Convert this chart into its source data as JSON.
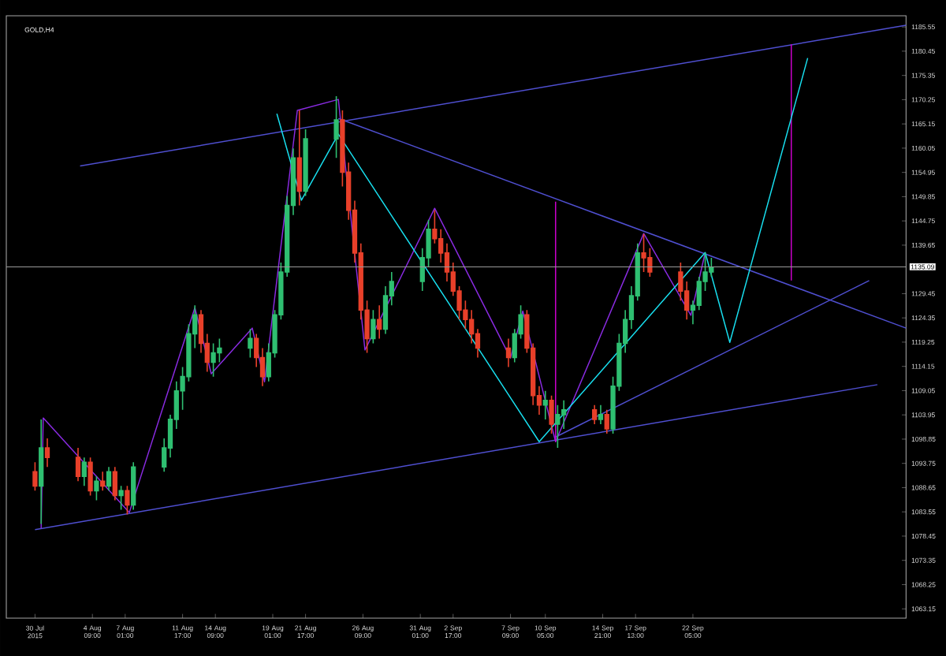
{
  "chart_data": {
    "type": "candlestick",
    "title": "GOLD,H4",
    "x": [
      "2015-07-30T17:00",
      "2015-07-31T05:00",
      "2015-07-31T17:00",
      "2015-08-03T05:00",
      "2015-08-03T17:00",
      "2015-08-04T05:00",
      "2015-08-04T17:00",
      "2015-08-05T05:00",
      "2015-08-05T17:00",
      "2015-08-06T05:00",
      "2015-08-06T17:00",
      "2015-08-07T05:00",
      "2015-08-07T17:00",
      "2015-08-10T05:00",
      "2015-08-10T17:00",
      "2015-08-11T05:00",
      "2015-08-11T17:00",
      "2015-08-12T05:00",
      "2015-08-12T17:00",
      "2015-08-13T05:00",
      "2015-08-13T17:00",
      "2015-08-14T05:00",
      "2015-08-14T17:00",
      "2015-08-17T05:00",
      "2015-08-17T17:00",
      "2015-08-18T05:00",
      "2015-08-18T17:00",
      "2015-08-19T05:00",
      "2015-08-19T17:00",
      "2015-08-20T05:00",
      "2015-08-20T17:00",
      "2015-08-21T05:00",
      "2015-08-21T17:00",
      "2015-08-24T05:00",
      "2015-08-24T17:00",
      "2015-08-25T05:00",
      "2015-08-25T17:00",
      "2015-08-26T05:00",
      "2015-08-26T17:00",
      "2015-08-27T05:00",
      "2015-08-27T17:00",
      "2015-08-28T05:00",
      "2015-08-28T17:00",
      "2015-08-31T05:00",
      "2015-08-31T17:00",
      "2015-09-01T05:00",
      "2015-09-01T17:00",
      "2015-09-02T05:00",
      "2015-09-02T17:00",
      "2015-09-03T05:00",
      "2015-09-03T17:00",
      "2015-09-04T05:00",
      "2015-09-04T17:00",
      "2015-09-07T05:00",
      "2015-09-07T17:00",
      "2015-09-08T05:00",
      "2015-09-08T17:00",
      "2015-09-09T05:00",
      "2015-09-09T17:00",
      "2015-09-10T05:00",
      "2015-09-10T17:00",
      "2015-09-11T05:00",
      "2015-09-11T17:00",
      "2015-09-14T05:00",
      "2015-09-14T17:00",
      "2015-09-15T05:00",
      "2015-09-15T17:00",
      "2015-09-16T05:00",
      "2015-09-16T17:00",
      "2015-09-17T05:00",
      "2015-09-17T17:00",
      "2015-09-18T05:00",
      "2015-09-18T17:00",
      "2015-09-21T05:00",
      "2015-09-21T17:00",
      "2015-09-22T05:00",
      "2015-09-22T17:00",
      "2015-09-23T05:00",
      "2015-09-23T17:00"
    ],
    "ohlc": [
      [
        1092,
        1094,
        1088,
        1089
      ],
      [
        1089,
        1103,
        1081,
        1097
      ],
      [
        1097,
        1099,
        1093,
        1095
      ],
      [
        1095,
        1097,
        1090,
        1091
      ],
      [
        1091,
        1095,
        1089,
        1094
      ],
      [
        1094,
        1095,
        1087,
        1088
      ],
      [
        1088,
        1091,
        1086,
        1090
      ],
      [
        1090,
        1092,
        1088,
        1089
      ],
      [
        1089,
        1093,
        1088,
        1092
      ],
      [
        1092,
        1093,
        1086,
        1087
      ],
      [
        1087,
        1089,
        1084,
        1088
      ],
      [
        1088,
        1089,
        1083,
        1085
      ],
      [
        1085,
        1094,
        1084,
        1093
      ],
      [
        1093,
        1099,
        1092,
        1097
      ],
      [
        1097,
        1104,
        1095,
        1103
      ],
      [
        1103,
        1111,
        1101,
        1109
      ],
      [
        1109,
        1114,
        1105,
        1112
      ],
      [
        1112,
        1123,
        1111,
        1121
      ],
      [
        1121,
        1127,
        1118,
        1125
      ],
      [
        1125,
        1126,
        1117,
        1119
      ],
      [
        1119,
        1121,
        1113,
        1115
      ],
      [
        1115,
        1119,
        1112,
        1117
      ],
      [
        1117,
        1120,
        1115,
        1118
      ],
      [
        1118,
        1122,
        1116,
        1120
      ],
      [
        1120,
        1121,
        1114,
        1116
      ],
      [
        1116,
        1118,
        1110,
        1112
      ],
      [
        1112,
        1119,
        1111,
        1117
      ],
      [
        1117,
        1126,
        1116,
        1125
      ],
      [
        1125,
        1136,
        1124,
        1134
      ],
      [
        1134,
        1150,
        1133,
        1148
      ],
      [
        1148,
        1160,
        1146,
        1158
      ],
      [
        1158,
        1168,
        1148,
        1151
      ],
      [
        1151,
        1164,
        1150,
        1162
      ],
      [
        1162,
        1171,
        1158,
        1166
      ],
      [
        1166,
        1168,
        1152,
        1155
      ],
      [
        1155,
        1157,
        1145,
        1147
      ],
      [
        1147,
        1149,
        1136,
        1138
      ],
      [
        1138,
        1140,
        1124,
        1126
      ],
      [
        1126,
        1128,
        1117,
        1120
      ],
      [
        1120,
        1126,
        1119,
        1124
      ],
      [
        1124,
        1127,
        1120,
        1122
      ],
      [
        1122,
        1131,
        1121,
        1129
      ],
      [
        1129,
        1134,
        1127,
        1132
      ],
      [
        1132,
        1139,
        1130,
        1137
      ],
      [
        1137,
        1145,
        1135,
        1143
      ],
      [
        1143,
        1147,
        1140,
        1141
      ],
      [
        1141,
        1143,
        1136,
        1138
      ],
      [
        1138,
        1140,
        1132,
        1134
      ],
      [
        1134,
        1136,
        1129,
        1130
      ],
      [
        1130,
        1131,
        1124,
        1126
      ],
      [
        1126,
        1128,
        1122,
        1124
      ],
      [
        1124,
        1126,
        1119,
        1121
      ],
      [
        1121,
        1122,
        1116,
        1118
      ],
      [
        1118,
        1120,
        1114,
        1116
      ],
      [
        1116,
        1122,
        1115,
        1121
      ],
      [
        1121,
        1127,
        1120,
        1125
      ],
      [
        1125,
        1126,
        1117,
        1118
      ],
      [
        1118,
        1119,
        1106,
        1108
      ],
      [
        1108,
        1110,
        1104,
        1106
      ],
      [
        1106,
        1109,
        1103,
        1107
      ],
      [
        1107,
        1108,
        1100,
        1102
      ],
      [
        1102,
        1106,
        1097,
        1104
      ],
      [
        1104,
        1107,
        1101,
        1105
      ],
      [
        1105,
        1106,
        1102,
        1103
      ],
      [
        1103,
        1106,
        1102,
        1104
      ],
      [
        1104,
        1105,
        1100,
        1101
      ],
      [
        1101,
        1112,
        1100,
        1110
      ],
      [
        1110,
        1121,
        1109,
        1119
      ],
      [
        1119,
        1126,
        1117,
        1124
      ],
      [
        1124,
        1131,
        1122,
        1129
      ],
      [
        1129,
        1140,
        1128,
        1138
      ],
      [
        1138,
        1142,
        1134,
        1137
      ],
      [
        1137,
        1139,
        1133,
        1134
      ],
      [
        1134,
        1136,
        1128,
        1130
      ],
      [
        1130,
        1132,
        1124,
        1126
      ],
      [
        1126,
        1128,
        1123,
        1127
      ],
      [
        1127,
        1133,
        1126,
        1132
      ],
      [
        1132,
        1138,
        1130,
        1134
      ],
      [
        1134,
        1137,
        1133,
        1135
      ]
    ],
    "colors": [
      "#e8402a",
      "#2fbf71",
      "#e8402a",
      "#e8402a",
      "#2fbf71",
      "#e8402a",
      "#2fbf71",
      "#e8402a",
      "#2fbf71",
      "#e8402a",
      "#2fbf71",
      "#e8402a",
      "#2fbf71",
      "#2fbf71",
      "#2fbf71",
      "#2fbf71",
      "#2fbf71",
      "#2fbf71",
      "#2fbf71",
      "#e8402a",
      "#e8402a",
      "#2fbf71",
      "#2fbf71",
      "#2fbf71",
      "#e8402a",
      "#e8402a",
      "#2fbf71",
      "#2fbf71",
      "#2fbf71",
      "#2fbf71",
      "#2fbf71",
      "#e8402a",
      "#2fbf71",
      "#2fbf71",
      "#e8402a",
      "#e8402a",
      "#e8402a",
      "#e8402a",
      "#e8402a",
      "#2fbf71",
      "#e8402a",
      "#2fbf71",
      "#2fbf71",
      "#2fbf71",
      "#2fbf71",
      "#e8402a",
      "#e8402a",
      "#e8402a",
      "#e8402a",
      "#e8402a",
      "#e8402a",
      "#e8402a",
      "#e8402a",
      "#e8402a",
      "#2fbf71",
      "#2fbf71",
      "#e8402a",
      "#e8402a",
      "#e8402a",
      "#2fbf71",
      "#e8402a",
      "#2fbf71",
      "#2fbf71",
      "#e8402a",
      "#2fbf71",
      "#e8402a",
      "#2fbf71",
      "#2fbf71",
      "#2fbf71",
      "#2fbf71",
      "#2fbf71",
      "#e8402a",
      "#e8402a",
      "#e8402a",
      "#e8402a",
      "#2fbf71",
      "#2fbf71",
      "#2fbf71",
      "#2fbf71"
    ],
    "series": [
      {
        "type": "line",
        "color": "#4f4fd0",
        "x": [
          "2015-08-03T09:00",
          "2015-10-09T13:00"
        ],
        "values": [
          1156.3,
          1185.9
        ]
      },
      {
        "type": "line",
        "color": "#4f4fd0",
        "x": [
          "2015-07-30T17:00",
          "2015-10-07T05:00"
        ],
        "values": [
          1079.8,
          1110.3
        ]
      },
      {
        "type": "line",
        "color": "#4f4fd0",
        "x": [
          "2015-08-24T09:00",
          "2015-10-09T13:00"
        ],
        "values": [
          1166.3,
          1122.2
        ]
      },
      {
        "type": "line",
        "color": "#4f4fd0",
        "x": [
          "2015-09-11T01:00",
          "2015-10-06T13:00"
        ],
        "values": [
          1099.3,
          1132.2
        ]
      },
      {
        "type": "line",
        "color": "#8a2be2",
        "x": [
          "2015-07-31T05:00",
          "2015-07-31T09:00",
          "2015-08-07T09:00",
          "2015-08-12T17:00",
          "2015-08-14T01:00",
          "2015-08-17T09:00",
          "2015-08-18T09:00",
          "2015-08-21T01:00",
          "2015-08-24T09:00",
          "2015-08-26T13:00",
          "2015-09-01T05:00",
          "2015-09-07T09:00",
          "2015-09-08T09:00",
          "2015-09-11T01:00",
          "2015-09-18T05:00",
          "2015-09-22T01:00",
          "2015-09-23T05:00"
        ],
        "values": [
          1080.1,
          1103.3,
          1083.4,
          1126.5,
          1112.6,
          1122.2,
          1110.9,
          1168,
          1170.3,
          1117.6,
          1147.4,
          1115.9,
          1125.8,
          1098.3,
          1142.1,
          1124.9,
          1138.1
        ]
      },
      {
        "type": "line",
        "color": "#d000d0",
        "x": [
          "2015-09-11T01:00",
          "2015-09-11T01:00"
        ],
        "values": [
          1098.3,
          1148.8
        ]
      },
      {
        "type": "line",
        "color": "#d000d0",
        "x": [
          "2015-09-30T05:00",
          "2015-09-30T05:00"
        ],
        "values": [
          1132.2,
          1181.9
        ]
      },
      {
        "type": "line",
        "color": "#18e0f0",
        "x": [
          "2015-08-19T09:00",
          "2015-08-21T09:00",
          "2015-08-24T09:00",
          "2015-09-09T17:00",
          "2015-09-23T05:00",
          "2015-09-25T05:00",
          "2015-10-01T13:00"
        ],
        "values": [
          1167.3,
          1149.1,
          1163,
          1098.3,
          1138.1,
          1119.2,
          1179
        ]
      }
    ],
    "line_style": "solid",
    "ref_lines": [
      {
        "axis": "y",
        "value": 1135.09,
        "label": "1135.09",
        "color": "#9a9a9a"
      }
    ],
    "xlim": [
      "2015-07-28T09:00",
      "2015-10-09T13:00"
    ],
    "ylim": [
      1061.2,
      1187.9
    ],
    "xticks": [
      {
        "value": "2015-07-30T17:00",
        "label": "30 Jul 2015"
      },
      {
        "value": "2015-08-04T09:00",
        "label": "4 Aug 09:00"
      },
      {
        "value": "2015-08-07T01:00",
        "label": "7 Aug 01:00"
      },
      {
        "value": "2015-08-11T17:00",
        "label": "11 Aug 17:00"
      },
      {
        "value": "2015-08-14T09:00",
        "label": "14 Aug 09:00"
      },
      {
        "value": "2015-08-19T01:00",
        "label": "19 Aug 01:00"
      },
      {
        "value": "2015-08-21T17:00",
        "label": "21 Aug 17:00"
      },
      {
        "value": "2015-08-26T09:00",
        "label": "26 Aug 09:00"
      },
      {
        "value": "2015-08-31T01:00",
        "label": "31 Aug 01:00"
      },
      {
        "value": "2015-09-02T17:00",
        "label": "2 Sep 17:00"
      },
      {
        "value": "2015-09-07T09:00",
        "label": "7 Sep 09:00"
      },
      {
        "value": "2015-09-10T05:00",
        "label": "10 Sep 05:00"
      },
      {
        "value": "2015-09-14T21:00",
        "label": "14 Sep 21:00"
      },
      {
        "value": "2015-09-17T13:00",
        "label": "17 Sep 13:00"
      },
      {
        "value": "2015-09-22T05:00",
        "label": "22 Sep 05:00"
      }
    ],
    "yticks": [
      1063.15,
      1068.25,
      1073.35,
      1078.45,
      1083.55,
      1088.65,
      1093.75,
      1098.85,
      1103.95,
      1109.05,
      1114.15,
      1119.25,
      1124.35,
      1129.45,
      1139.65,
      1144.75,
      1149.85,
      1154.95,
      1160.05,
      1165.15,
      1170.25,
      1175.35,
      1180.45,
      1185.55
    ]
  }
}
